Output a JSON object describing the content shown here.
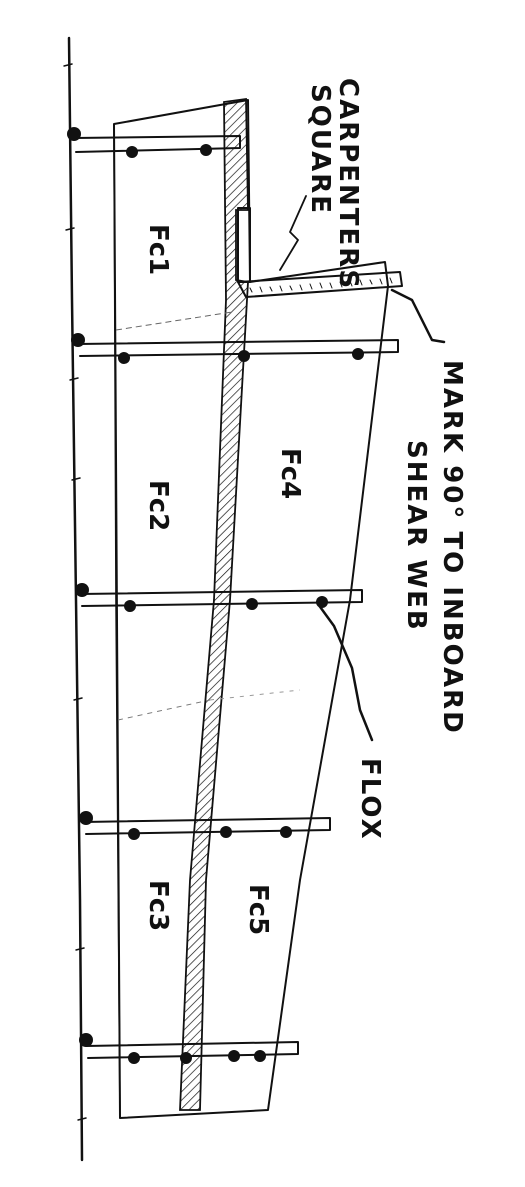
{
  "panels": [
    {
      "id": "fc1",
      "label": "Fc1"
    },
    {
      "id": "fc2",
      "label": "Fc2"
    },
    {
      "id": "fc3",
      "label": "Fc3"
    },
    {
      "id": "fc4",
      "label": "Fc4"
    },
    {
      "id": "fc5",
      "label": "Fc5"
    }
  ],
  "callouts": {
    "square_line1": "CARPENTERS",
    "square_line2": "SQUARE",
    "mark_line1": "MARK 90° TO INBOARD",
    "mark_line2": "SHEAR WEB",
    "flox": "FLOX"
  },
  "colors": {
    "ink": "#111111",
    "paper": "#ffffff"
  }
}
